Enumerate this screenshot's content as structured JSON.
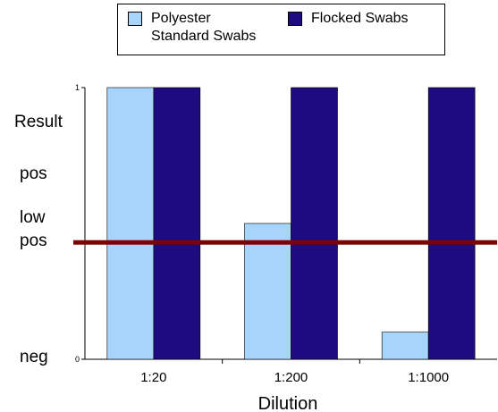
{
  "chart_data": {
    "type": "bar",
    "title": "",
    "xlabel": "Dilution",
    "ylabel": "Result",
    "categories": [
      "1:20",
      "1:200",
      "1:1000"
    ],
    "series": [
      {
        "name": "Polyester\nStandard Swabs",
        "values": [
          1.0,
          0.5,
          0.1
        ],
        "color": "#a6d4fa"
      },
      {
        "name": "Flocked Swabs",
        "values": [
          1.0,
          1.0,
          1.0
        ],
        "color": "#1e0b7f"
      }
    ],
    "ylim": [
      0,
      1
    ],
    "y_tick_labels": [
      "0",
      "1"
    ],
    "y_category_labels": [
      "Result",
      "pos",
      "low\npos",
      "neg"
    ],
    "threshold": {
      "value": 0.43,
      "color": "#800000"
    },
    "legend_position": "top",
    "grid": false
  }
}
